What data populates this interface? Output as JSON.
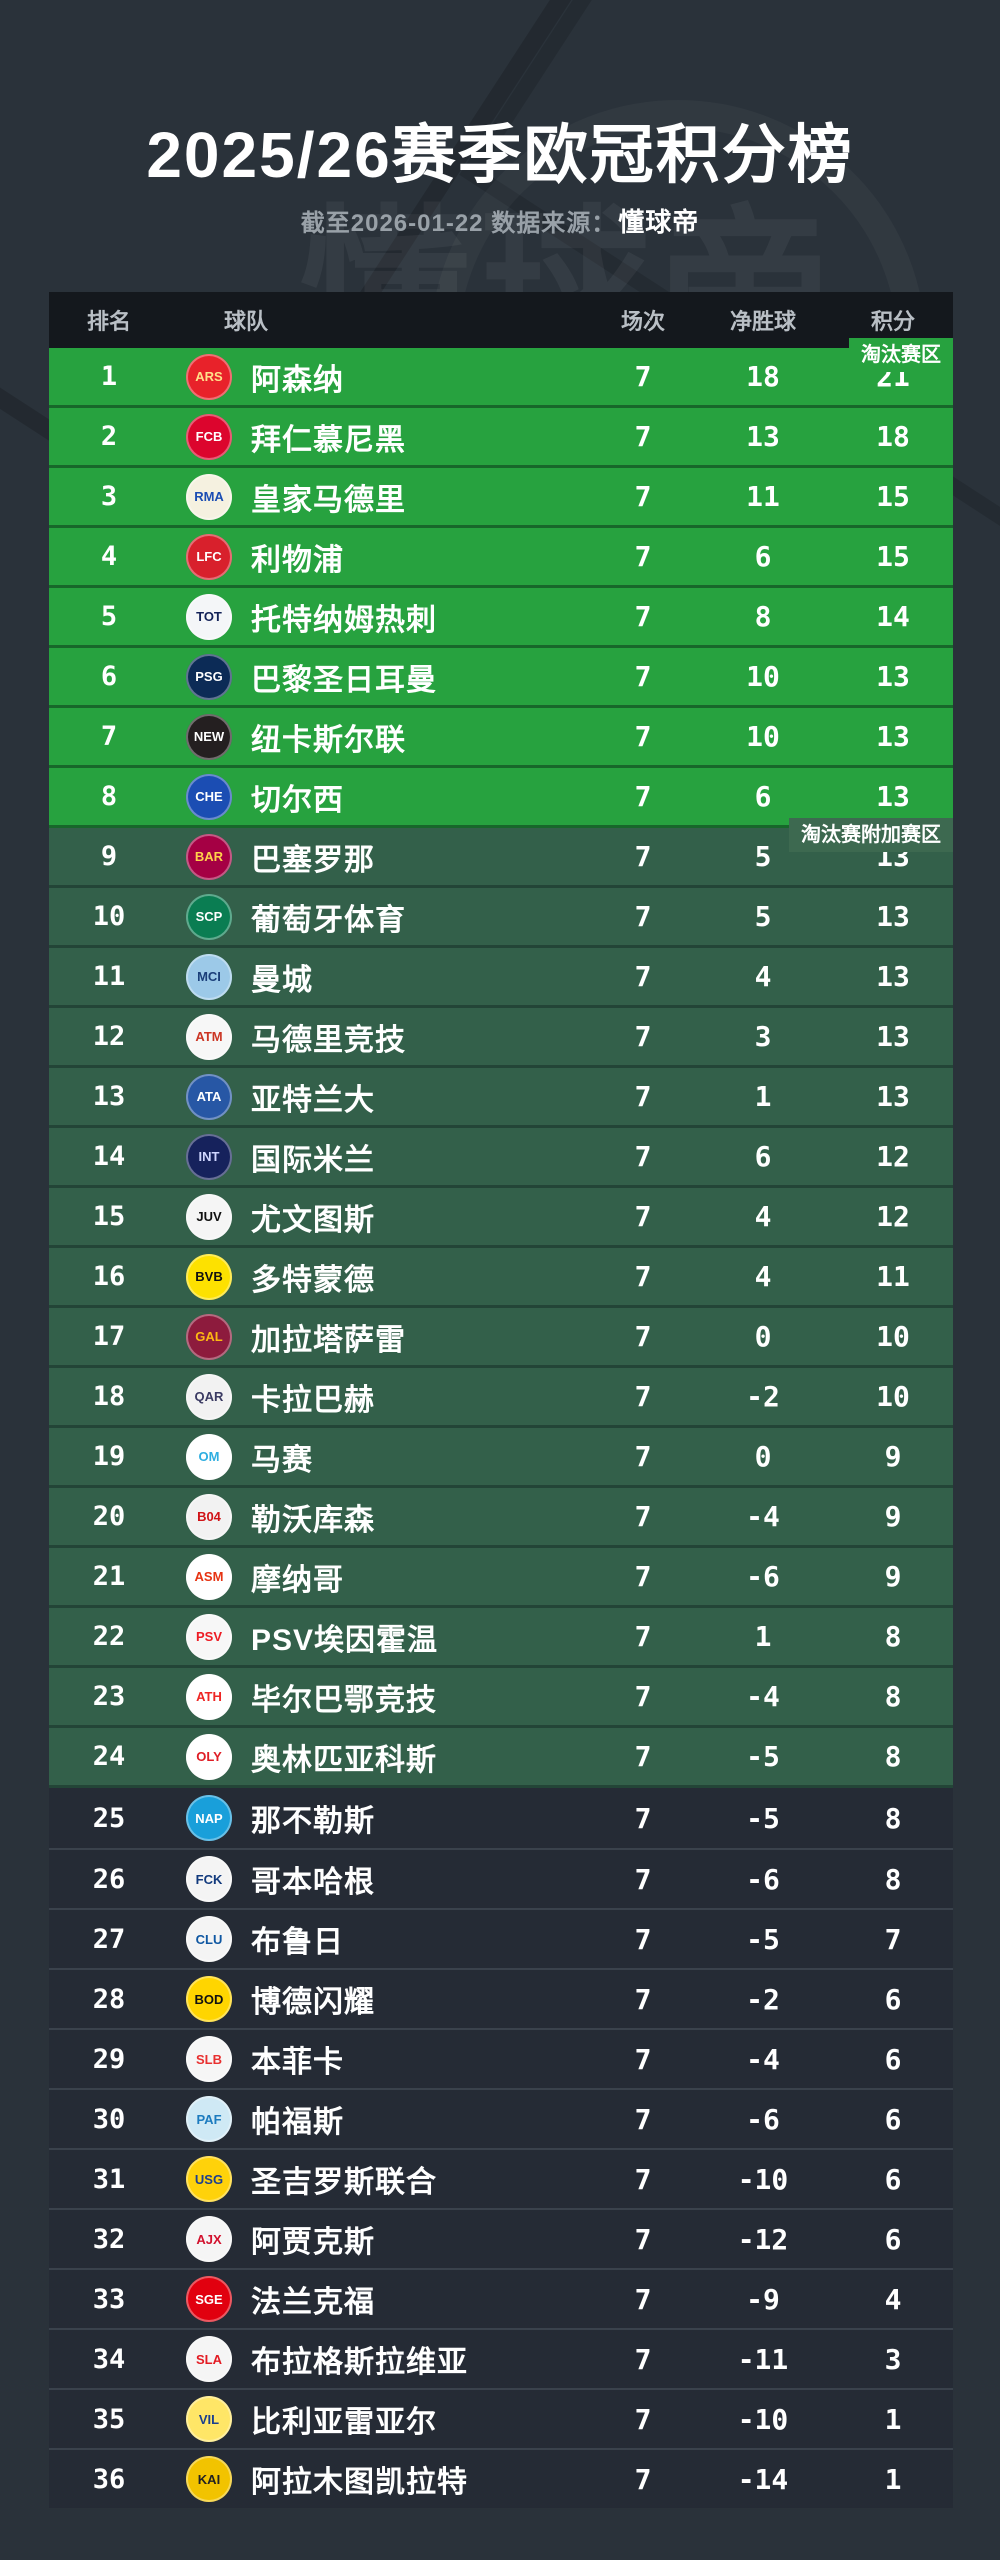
{
  "page": {
    "title": "2025/26赛季欧冠积分榜",
    "subtitle_prefix": "截至2026-01-22 数据来源：",
    "subtitle_source": "懂球帝",
    "watermark": "懂球帝"
  },
  "colors": {
    "page_bg": "#2a323a",
    "header_bg": "#14181d",
    "knockout_green": "#27a23f",
    "playoff_green": "#33604a",
    "eliminated_row": "#252b35",
    "text_white": "#ffffff",
    "header_text": "#b9bfc5",
    "subtitle_text": "#99a1a8"
  },
  "table": {
    "headers": {
      "rank": "排名",
      "team": "球队",
      "played": "场次",
      "gd": "净胜球",
      "points": "积分"
    },
    "zone_badges": {
      "knockout": "淘汰赛区",
      "playoff": "淘汰赛附加赛区"
    },
    "rows": [
      {
        "rank": 1,
        "name": "阿森纳",
        "played": 7,
        "gd": 18,
        "points": 21,
        "zone": "ko",
        "logo": {
          "bg": "#e8222a",
          "fg": "#ffe08a",
          "label": "ARS"
        }
      },
      {
        "rank": 2,
        "name": "拜仁慕尼黑",
        "played": 7,
        "gd": 13,
        "points": 18,
        "zone": "ko",
        "logo": {
          "bg": "#dc052d",
          "fg": "#ffffff",
          "label": "FCB"
        }
      },
      {
        "rank": 3,
        "name": "皇家马德里",
        "played": 7,
        "gd": 11,
        "points": 15,
        "zone": "ko",
        "logo": {
          "bg": "#f5f1e0",
          "fg": "#1b4db3",
          "label": "RMA"
        }
      },
      {
        "rank": 4,
        "name": "利物浦",
        "played": 7,
        "gd": 6,
        "points": 15,
        "zone": "ko",
        "logo": {
          "bg": "#d8202c",
          "fg": "#ffffff",
          "label": "LFC"
        }
      },
      {
        "rank": 5,
        "name": "托特纳姆热刺",
        "played": 7,
        "gd": 8,
        "points": 14,
        "zone": "ko",
        "logo": {
          "bg": "#f4f6f8",
          "fg": "#132257",
          "label": "TOT"
        }
      },
      {
        "rank": 6,
        "name": "巴黎圣日耳曼",
        "played": 7,
        "gd": 10,
        "points": 13,
        "zone": "ko",
        "logo": {
          "bg": "#0c2b56",
          "fg": "#ffffff",
          "label": "PSG"
        }
      },
      {
        "rank": 7,
        "name": "纽卡斯尔联",
        "played": 7,
        "gd": 10,
        "points": 13,
        "zone": "ko",
        "logo": {
          "bg": "#241f20",
          "fg": "#ffffff",
          "label": "NEW"
        }
      },
      {
        "rank": 8,
        "name": "切尔西",
        "played": 7,
        "gd": 6,
        "points": 13,
        "zone": "ko",
        "logo": {
          "bg": "#1b4db3",
          "fg": "#ffffff",
          "label": "CHE"
        }
      },
      {
        "rank": 9,
        "name": "巴塞罗那",
        "played": 7,
        "gd": 5,
        "points": 13,
        "zone": "po",
        "logo": {
          "bg": "#a50044",
          "fg": "#ffd24a",
          "label": "BAR"
        }
      },
      {
        "rank": 10,
        "name": "葡萄牙体育",
        "played": 7,
        "gd": 5,
        "points": 13,
        "zone": "po",
        "logo": {
          "bg": "#0a7d52",
          "fg": "#ffffff",
          "label": "SCP"
        }
      },
      {
        "rank": 11,
        "name": "曼城",
        "played": 7,
        "gd": 4,
        "points": 13,
        "zone": "po",
        "logo": {
          "bg": "#9cc9e8",
          "fg": "#1b3f7a",
          "label": "MCI"
        }
      },
      {
        "rank": 12,
        "name": "马德里竞技",
        "played": 7,
        "gd": 3,
        "points": 13,
        "zone": "po",
        "logo": {
          "bg": "#f7f7f7",
          "fg": "#cb3524",
          "label": "ATM"
        }
      },
      {
        "rank": 13,
        "name": "亚特兰大",
        "played": 7,
        "gd": 1,
        "points": 13,
        "zone": "po",
        "logo": {
          "bg": "#2757a5",
          "fg": "#ffffff",
          "label": "ATA"
        }
      },
      {
        "rank": 14,
        "name": "国际米兰",
        "played": 7,
        "gd": 6,
        "points": 12,
        "zone": "po",
        "logo": {
          "bg": "#16225c",
          "fg": "#cfd6ff",
          "label": "INT"
        }
      },
      {
        "rank": 15,
        "name": "尤文图斯",
        "played": 7,
        "gd": 4,
        "points": 12,
        "zone": "po",
        "logo": {
          "bg": "#f5f5f5",
          "fg": "#111111",
          "label": "JUV"
        }
      },
      {
        "rank": 16,
        "name": "多特蒙德",
        "played": 7,
        "gd": 4,
        "points": 11,
        "zone": "po",
        "logo": {
          "bg": "#fde100",
          "fg": "#111111",
          "label": "BVB"
        }
      },
      {
        "rank": 17,
        "name": "加拉塔萨雷",
        "played": 7,
        "gd": 0,
        "points": 10,
        "zone": "po",
        "logo": {
          "bg": "#8d1b3d",
          "fg": "#fdb912",
          "label": "GAL"
        }
      },
      {
        "rank": 18,
        "name": "卡拉巴赫",
        "played": 7,
        "gd": -2,
        "points": 10,
        "zone": "po",
        "logo": {
          "bg": "#f2f2f2",
          "fg": "#3b3b63",
          "label": "QAR"
        }
      },
      {
        "rank": 19,
        "name": "马赛",
        "played": 7,
        "gd": 0,
        "points": 9,
        "zone": "po",
        "logo": {
          "bg": "#ffffff",
          "fg": "#2faee0",
          "label": "OM"
        }
      },
      {
        "rank": 20,
        "name": "勒沃库森",
        "played": 7,
        "gd": -4,
        "points": 9,
        "zone": "po",
        "logo": {
          "bg": "#f2f2f2",
          "fg": "#d01317",
          "label": "B04"
        }
      },
      {
        "rank": 21,
        "name": "摩纳哥",
        "played": 7,
        "gd": -6,
        "points": 9,
        "zone": "po",
        "logo": {
          "bg": "#ffffff",
          "fg": "#e63312",
          "label": "ASM"
        }
      },
      {
        "rank": 22,
        "name": "PSV埃因霍温",
        "played": 7,
        "gd": 1,
        "points": 8,
        "zone": "po",
        "logo": {
          "bg": "#f7f7f7",
          "fg": "#ed1c24",
          "label": "PSV"
        }
      },
      {
        "rank": 23,
        "name": "毕尔巴鄂竞技",
        "played": 7,
        "gd": -4,
        "points": 8,
        "zone": "po",
        "logo": {
          "bg": "#ffffff",
          "fg": "#ee2523",
          "label": "ATH"
        }
      },
      {
        "rank": 24,
        "name": "奥林匹亚科斯",
        "played": 7,
        "gd": -5,
        "points": 8,
        "zone": "po",
        "logo": {
          "bg": "#ffffff",
          "fg": "#df1e26",
          "label": "OLY"
        }
      },
      {
        "rank": 25,
        "name": "那不勒斯",
        "played": 7,
        "gd": -5,
        "points": 8,
        "zone": "out",
        "logo": {
          "bg": "#199fda",
          "fg": "#ffffff",
          "label": "NAP"
        }
      },
      {
        "rank": 26,
        "name": "哥本哈根",
        "played": 7,
        "gd": -6,
        "points": 8,
        "zone": "out",
        "logo": {
          "bg": "#f4f4f4",
          "fg": "#123a7d",
          "label": "FCK"
        }
      },
      {
        "rank": 27,
        "name": "布鲁日",
        "played": 7,
        "gd": -5,
        "points": 7,
        "zone": "out",
        "logo": {
          "bg": "#f4f4f4",
          "fg": "#0f57a2",
          "label": "CLU"
        }
      },
      {
        "rank": 28,
        "name": "博德闪耀",
        "played": 7,
        "gd": -2,
        "points": 6,
        "zone": "out",
        "logo": {
          "bg": "#ffd500",
          "fg": "#111111",
          "label": "BOD"
        }
      },
      {
        "rank": 29,
        "name": "本菲卡",
        "played": 7,
        "gd": -4,
        "points": 6,
        "zone": "out",
        "logo": {
          "bg": "#f6f6f6",
          "fg": "#e83030",
          "label": "SLB"
        }
      },
      {
        "rank": 30,
        "name": "帕福斯",
        "played": 7,
        "gd": -6,
        "points": 6,
        "zone": "out",
        "logo": {
          "bg": "#cfe9f5",
          "fg": "#1c7bbf",
          "label": "PAF"
        }
      },
      {
        "rank": 31,
        "name": "圣吉罗斯联合",
        "played": 7,
        "gd": -10,
        "points": 6,
        "zone": "out",
        "logo": {
          "bg": "#ffd20a",
          "fg": "#1d3f8f",
          "label": "USG"
        }
      },
      {
        "rank": 32,
        "name": "阿贾克斯",
        "played": 7,
        "gd": -12,
        "points": 6,
        "zone": "out",
        "logo": {
          "bg": "#f5f5f5",
          "fg": "#d2122e",
          "label": "AJX"
        }
      },
      {
        "rank": 33,
        "name": "法兰克福",
        "played": 7,
        "gd": -9,
        "points": 4,
        "zone": "out",
        "logo": {
          "bg": "#e1000f",
          "fg": "#ffffff",
          "label": "SGE"
        }
      },
      {
        "rank": 34,
        "name": "布拉格斯拉维亚",
        "played": 7,
        "gd": -11,
        "points": 3,
        "zone": "out",
        "logo": {
          "bg": "#f5f5f5",
          "fg": "#e31b23",
          "label": "SLA"
        }
      },
      {
        "rank": 35,
        "name": "比利亚雷亚尔",
        "played": 7,
        "gd": -10,
        "points": 1,
        "zone": "out",
        "logo": {
          "bg": "#ffe667",
          "fg": "#1a3f8f",
          "label": "VIL"
        }
      },
      {
        "rank": 36,
        "name": "阿拉木图凯拉特",
        "played": 7,
        "gd": -14,
        "points": 1,
        "zone": "out",
        "logo": {
          "bg": "#f2c300",
          "fg": "#222222",
          "label": "KAI"
        }
      }
    ]
  },
  "chart_data": {
    "type": "table",
    "title": "2025/26赛季欧冠积分榜",
    "subtitle": "截至2026-01-22 数据来源：懂球帝",
    "columns": [
      "排名",
      "球队",
      "场次",
      "净胜球",
      "积分"
    ],
    "zones": {
      "rows_1_8": "淘汰赛区",
      "rows_9_24": "淘汰赛附加赛区",
      "rows_25_36": "出局区(无标签)"
    },
    "rows": [
      [
        1,
        "阿森纳",
        7,
        18,
        21
      ],
      [
        2,
        "拜仁慕尼黑",
        7,
        13,
        18
      ],
      [
        3,
        "皇家马德里",
        7,
        11,
        15
      ],
      [
        4,
        "利物浦",
        7,
        6,
        15
      ],
      [
        5,
        "托特纳姆热刺",
        7,
        8,
        14
      ],
      [
        6,
        "巴黎圣日耳曼",
        7,
        10,
        13
      ],
      [
        7,
        "纽卡斯尔联",
        7,
        10,
        13
      ],
      [
        8,
        "切尔西",
        7,
        6,
        13
      ],
      [
        9,
        "巴塞罗那",
        7,
        5,
        13
      ],
      [
        10,
        "葡萄牙体育",
        7,
        5,
        13
      ],
      [
        11,
        "曼城",
        7,
        4,
        13
      ],
      [
        12,
        "马德里竞技",
        7,
        3,
        13
      ],
      [
        13,
        "亚特兰大",
        7,
        1,
        13
      ],
      [
        14,
        "国际米兰",
        7,
        6,
        12
      ],
      [
        15,
        "尤文图斯",
        7,
        4,
        12
      ],
      [
        16,
        "多特蒙德",
        7,
        4,
        11
      ],
      [
        17,
        "加拉塔萨雷",
        7,
        0,
        10
      ],
      [
        18,
        "卡拉巴赫",
        7,
        -2,
        10
      ],
      [
        19,
        "马赛",
        7,
        0,
        9
      ],
      [
        20,
        "勒沃库森",
        7,
        -4,
        9
      ],
      [
        21,
        "摩纳哥",
        7,
        -6,
        9
      ],
      [
        22,
        "PSV埃因霍温",
        7,
        1,
        8
      ],
      [
        23,
        "毕尔巴鄂竞技",
        7,
        -4,
        8
      ],
      [
        24,
        "奥林匹亚科斯",
        7,
        -5,
        8
      ],
      [
        25,
        "那不勒斯",
        7,
        -5,
        8
      ],
      [
        26,
        "哥本哈根",
        7,
        -6,
        8
      ],
      [
        27,
        "布鲁日",
        7,
        -5,
        7
      ],
      [
        28,
        "博德闪耀",
        7,
        -2,
        6
      ],
      [
        29,
        "本菲卡",
        7,
        -4,
        6
      ],
      [
        30,
        "帕福斯",
        7,
        -6,
        6
      ],
      [
        31,
        "圣吉罗斯联合",
        7,
        -10,
        6
      ],
      [
        32,
        "阿贾克斯",
        7,
        -12,
        6
      ],
      [
        33,
        "法兰克福",
        7,
        -9,
        4
      ],
      [
        34,
        "布拉格斯拉维亚",
        7,
        -11,
        3
      ],
      [
        35,
        "比利亚雷亚尔",
        7,
        -10,
        1
      ],
      [
        36,
        "阿拉木图凯拉特",
        7,
        -14,
        1
      ]
    ]
  }
}
